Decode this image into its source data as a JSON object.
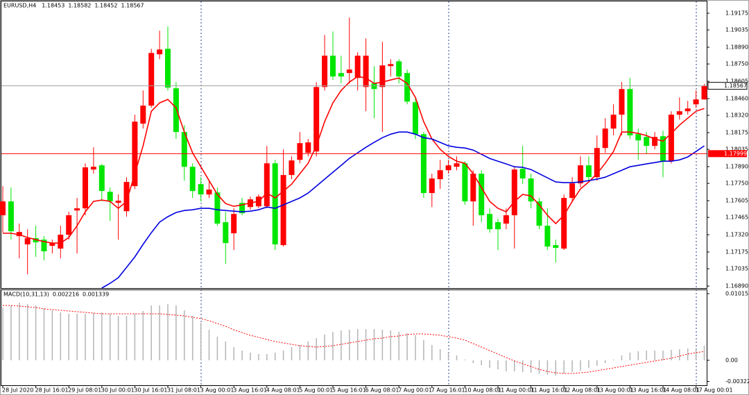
{
  "chart_data": [
    {
      "type": "candlestick",
      "title": "EURUSD,H4",
      "categories": [
        "28 Jul 2020",
        null,
        null,
        null,
        "28 Jul 16:01",
        null,
        null,
        null,
        "29 Jul 08:01",
        null,
        null,
        null,
        "30 Jul 00:01",
        null,
        null,
        null,
        "30 Jul 16:01",
        null,
        null,
        null,
        "31 Jul 08:01",
        null,
        null,
        null,
        "3 Aug 00:01",
        null,
        null,
        null,
        "3 Aug 16:01",
        null,
        null,
        null,
        "4 Aug 08:01",
        null,
        null,
        null,
        "5 Aug 00:01",
        null,
        null,
        null,
        "5 Aug 16:01",
        null,
        null,
        null,
        "6 Aug 08:01",
        null,
        null,
        null,
        "7 Aug 00:01",
        null,
        null,
        null,
        "7 Aug 16:01",
        null,
        null,
        null,
        "10 Aug 08:01",
        null,
        null,
        null,
        "11 Aug 00:01",
        null,
        null,
        null,
        "11 Aug 16:01",
        null,
        null,
        null,
        "12 Aug 08:01",
        null,
        null,
        null,
        "13 Aug 00:01",
        null,
        null,
        null,
        "13 Aug 16:01",
        null,
        null,
        null,
        "14 Aug 08:01",
        null,
        null,
        null,
        "17 Aug 00:01",
        null
      ],
      "open": [
        1.17483,
        1.17599,
        1.17308,
        1.17239,
        1.17291,
        1.17279,
        1.17227,
        1.17204,
        1.1732,
        1.17523,
        1.17541,
        1.17866,
        1.17901,
        1.1768,
        1.17587,
        1.17517,
        1.17727,
        1.1825,
        1.18401,
        1.18831,
        1.18877,
        1.18546,
        1.1818,
        1.17889,
        1.17744,
        1.17657,
        1.17674,
        1.17425,
        1.17332,
        1.17587,
        1.17552,
        1.17558,
        1.17558,
        1.17918,
        1.17233,
        1.1782,
        1.17947,
        1.18006,
        1.18017,
        1.18557,
        1.18819,
        1.18674,
        1.18674,
        1.18633,
        1.18557,
        1.18587,
        1.18557,
        1.18732,
        1.18772,
        1.18674,
        1.1843,
        1.18162,
        1.17669,
        1.17785,
        1.1786,
        1.17889,
        1.17918,
        1.17599,
        1.17831,
        1.17494,
        1.17425,
        1.17413,
        1.17483,
        1.17872,
        1.17791,
        1.17599,
        1.17395,
        1.17233,
        1.17204,
        1.17628,
        1.1775,
        1.17901,
        1.17802,
        1.18046,
        1.18209,
        1.18325,
        1.1854,
        1.18162,
        1.18139,
        1.18064,
        1.18145,
        1.17936,
        1.18325,
        1.18354,
        1.18412,
        1.18453
      ],
      "high": [
        1.17727,
        1.17715,
        1.17413,
        1.17366,
        1.17395,
        1.17308,
        1.17279,
        1.17395,
        1.17512,
        1.17628,
        1.17918,
        1.18052,
        1.17913,
        1.17715,
        1.17657,
        1.17802,
        1.18325,
        1.18528,
        1.18877,
        1.19028,
        1.19063,
        1.18598,
        1.18238,
        1.17918,
        1.17802,
        1.17773,
        1.17715,
        1.17512,
        1.17541,
        1.17628,
        1.17639,
        1.17657,
        1.18064,
        1.17947,
        1.18035,
        1.17976,
        1.1818,
        1.18122,
        1.18598,
        1.18993,
        1.19022,
        1.18819,
        1.19138,
        1.18848,
        1.18964,
        1.18732,
        1.18935,
        1.1879,
        1.1879,
        1.18703,
        1.1847,
        1.1818,
        1.17831,
        1.17947,
        1.17947,
        1.17976,
        1.17936,
        1.1786,
        1.1786,
        1.17541,
        1.17454,
        1.17541,
        1.17889,
        1.18064,
        1.17831,
        1.17628,
        1.17541,
        1.17279,
        1.17657,
        1.17802,
        1.17976,
        1.17976,
        1.18152,
        1.18296,
        1.18412,
        1.18598,
        1.18633,
        1.18209,
        1.1818,
        1.1818,
        1.18191,
        1.18354,
        1.1847,
        1.18441,
        1.18528,
        1.18582
      ],
      "low": [
        1.17337,
        1.17279,
        1.17122,
        1.16989,
        1.17134,
        1.17105,
        1.17163,
        1.17122,
        1.17279,
        1.17163,
        1.17483,
        1.17831,
        1.17599,
        1.17436,
        1.17279,
        1.17471,
        1.17703,
        1.18209,
        1.18383,
        1.1879,
        1.18528,
        1.18122,
        1.17773,
        1.17628,
        1.17599,
        1.17628,
        1.17395,
        1.17076,
        1.17192,
        1.17483,
        1.17529,
        1.17541,
        1.17541,
        1.17192,
        1.17221,
        1.17785,
        1.17918,
        1.17976,
        1.17976,
        1.18528,
        1.18616,
        1.18587,
        1.18587,
        1.18528,
        1.18354,
        1.18296,
        1.1818,
        1.18645,
        1.18587,
        1.18412,
        1.18122,
        1.17628,
        1.17552,
        1.17703,
        1.17831,
        1.1786,
        1.1757,
        1.17395,
        1.17425,
        1.17337,
        1.17192,
        1.17366,
        1.17204,
        1.17744,
        1.17541,
        1.17366,
        1.17192,
        1.17088,
        1.17192,
        1.17599,
        1.17715,
        1.17762,
        1.17773,
        1.18006,
        1.18152,
        1.18152,
        1.18122,
        1.17947,
        1.17994,
        1.18035,
        1.17802,
        1.17918,
        1.18284,
        1.18325,
        1.18383,
        1.18452
      ],
      "close": [
        1.17599,
        1.17349,
        1.17343,
        1.17291,
        1.17256,
        1.17181,
        1.1725,
        1.1732,
        1.17483,
        1.17541,
        1.17884,
        1.17889,
        1.17686,
        1.17599,
        1.17605,
        1.17762,
        1.18267,
        1.18401,
        1.18842,
        1.18871,
        1.18552,
        1.1818,
        1.17889,
        1.17686,
        1.17657,
        1.17698,
        1.17413,
        1.1725,
        1.17494,
        1.175,
        1.17616,
        1.17639,
        1.17918,
        1.17239,
        1.1782,
        1.17942,
        1.18087,
        1.18093,
        1.18557,
        1.18819,
        1.18645,
        1.18645,
        1.18703,
        1.18819,
        1.18819,
        1.1854,
        1.18738,
        1.18749,
        1.18645,
        1.18435,
        1.18162,
        1.17669,
        1.17791,
        1.1786,
        1.17901,
        1.17918,
        1.17599,
        1.17831,
        1.17483,
        1.17366,
        1.17366,
        1.17483,
        1.17866,
        1.17791,
        1.17599,
        1.17395,
        1.17221,
        1.1721,
        1.17628,
        1.1775,
        1.17901,
        1.17802,
        1.18046,
        1.18209,
        1.18325,
        1.1854,
        1.18152,
        1.1811,
        1.18064,
        1.18139,
        1.17936,
        1.18325,
        1.18354,
        1.18377,
        1.18453,
        1.18567
      ],
      "up_color": "#ff0000",
      "down_color": "#00e600",
      "series": [
        {
          "color": "#ff0000",
          "values": [
            1.17332,
            1.17332,
            1.1732,
            1.17297,
            1.17279,
            1.17262,
            1.1725,
            1.1725,
            1.17297,
            1.17395,
            1.17512,
            1.17599,
            1.1761,
            1.17599,
            1.17541,
            1.17599,
            1.17831,
            1.18064,
            1.18354,
            1.18424,
            1.18453,
            1.18383,
            1.1818,
            1.18006,
            1.17889,
            1.17773,
            1.17657,
            1.17581,
            1.17558,
            1.1757,
            1.17587,
            1.17599,
            1.17669,
            1.17628,
            1.17686,
            1.17744,
            1.17831,
            1.17918,
            1.18064,
            1.18267,
            1.18424,
            1.18528,
            1.18598,
            1.18645,
            1.18633,
            1.18587,
            1.18598,
            1.18616,
            1.18633,
            1.18587,
            1.1847,
            1.18267,
            1.18122,
            1.18035,
            1.17976,
            1.17936,
            1.17918,
            1.17831,
            1.17715,
            1.17599,
            1.17541,
            1.17512,
            1.17599,
            1.17657,
            1.17645,
            1.1757,
            1.17483,
            1.17413,
            1.17483,
            1.17599,
            1.17703,
            1.17762,
            1.17831,
            1.17918,
            1.18017,
            1.1818,
            1.1818,
            1.18168,
            1.18151,
            1.18122,
            1.18104,
            1.18168,
            1.18238,
            1.18296,
            1.18354,
            1.18377
          ]
        },
        {
          "color": "#0000e0",
          "values": [
            null,
            null,
            null,
            null,
            null,
            null,
            null,
            null,
            null,
            null,
            null,
            null,
            1.16873,
            1.16913,
            1.1696,
            1.17047,
            1.17134,
            1.17239,
            1.17337,
            1.17425,
            1.17471,
            1.17506,
            1.17523,
            1.17529,
            1.17541,
            1.17541,
            1.17529,
            1.17523,
            1.17517,
            1.17512,
            1.17517,
            1.17529,
            1.17552,
            1.17541,
            1.1757,
            1.17599,
            1.17628,
            1.17669,
            1.17727,
            1.17785,
            1.17843,
            1.17901,
            1.17959,
            1.18006,
            1.18052,
            1.18093,
            1.18133,
            1.18162,
            1.1818,
            1.1818,
            1.18162,
            1.18133,
            1.18122,
            1.18093,
            1.18064,
            1.18052,
            1.18046,
            1.18029,
            1.17994,
            1.17959,
            1.17936,
            1.17913,
            1.17889,
            1.17884,
            1.17866,
            1.17831,
            1.17796,
            1.17762,
            1.17756,
            1.17756,
            1.17762,
            1.17773,
            1.17785,
            1.17802,
            1.17831,
            1.1786,
            1.17889,
            1.17901,
            1.17913,
            1.17924,
            1.17936,
            1.17936,
            1.17947,
            1.17971,
            1.18017,
            1.18064
          ]
        }
      ],
      "levels": [
        {
          "value": 1.17999,
          "color": "#ff0000"
        }
      ],
      "price_line_color": "#a0a0a0",
      "ylim": [
        1.16873,
        1.19274
      ],
      "yticks": [
        1.19175,
        1.19035,
        {
          "value": 1.1889,
          "label": "1.18890"
        },
        {
          "value": 1.1875,
          "label": "1.18750"
        },
        1.18605,
        {
          "value": 1.1846,
          "label": "1.18460"
        },
        {
          "value": 1.1832,
          "label": "1.18320"
        },
        1.18175,
        1.18035,
        {
          "value": 1.1789,
          "label": "1.17890"
        },
        {
          "value": 1.1775,
          "label": "1.17750"
        },
        1.17605,
        1.17465,
        {
          "value": 1.1732,
          "label": "1.17320"
        },
        1.17175,
        1.17035,
        {
          "value": 1.1689,
          "label": "1.16890"
        }
      ]
    },
    {
      "type": "macd",
      "title": "MACD(10,31,13)",
      "histogram": {
        "color": "#b4b4b4",
        "values": [
          0.008041,
          0.008358,
          0.008781,
          0.00857,
          0.008358,
          0.007935,
          0.007618,
          0.0073,
          0.007089,
          0.007089,
          0.007089,
          0.007194,
          0.0073,
          0.007089,
          0.006771,
          0.006771,
          0.007089,
          0.007512,
          0.008358,
          0.008358,
          0.00857,
          0.008358,
          0.007618,
          0.006771,
          0.005713,
          0.004655,
          0.003597,
          0.002857,
          0.00201,
          0.001481,
          0.001164,
          0.000952,
          0.000952,
          0.001164,
          0.001481,
          0.00201,
          0.002328,
          0.002857,
          0.003386,
          0.003915,
          0.004338,
          0.004549,
          0.004655,
          0.004761,
          0.004761,
          0.004761,
          0.004655,
          0.004549,
          0.004338,
          0.004126,
          0.003809,
          0.003068,
          0.002328,
          0.001693,
          0.001164,
          0.000741,
          0.000106,
          -0.000423,
          -0.000741,
          -0.001164,
          -0.001375,
          -0.001693,
          -0.001693,
          -0.001799,
          -0.001904,
          -0.00201,
          -0.002222,
          -0.002328,
          -0.00201,
          -0.001799,
          -0.001587,
          -0.001164,
          -0.000846,
          -0.000423,
          0.000106,
          0.000741,
          0.001164,
          0.001375,
          0.001481,
          0.001481,
          0.001481,
          0.001587,
          0.001693,
          0.001799,
          0.001693,
          0.002216
        ]
      },
      "signal": {
        "color": "#ff0000",
        "values": [
          0.008358,
          0.008358,
          0.008252,
          0.008147,
          0.008041,
          0.007829,
          0.007723,
          0.007618,
          0.007512,
          0.007406,
          0.0073,
          0.007194,
          0.007089,
          0.007089,
          0.007089,
          0.007089,
          0.007089,
          0.007089,
          0.007089,
          0.007089,
          0.006983,
          0.006877,
          0.006771,
          0.00656,
          0.006348,
          0.006031,
          0.005607,
          0.005184,
          0.004655,
          0.004232,
          0.003809,
          0.003491,
          0.003174,
          0.002857,
          0.002645,
          0.002433,
          0.002222,
          0.002116,
          0.00201,
          0.002116,
          0.002222,
          0.002433,
          0.002645,
          0.002857,
          0.003068,
          0.00328,
          0.003386,
          0.003597,
          0.003703,
          0.003915,
          0.00402,
          0.00402,
          0.003915,
          0.003809,
          0.003597,
          0.003386,
          0.003068,
          0.002539,
          0.00201,
          0.001481,
          0.000952,
          0.000423,
          -0.000106,
          -0.000529,
          -0.000952,
          -0.001375,
          -0.001693,
          -0.001904,
          -0.00201,
          -0.00201,
          -0.001904,
          -0.001799,
          -0.001587,
          -0.001375,
          -0.001164,
          -0.000952,
          -0.000741,
          -0.000529,
          -0.000317,
          -0.000106,
          0.000106,
          0.000317,
          0.000635,
          0.000952,
          0.001164,
          0.001339
        ]
      },
      "ylim": [
        -0.003809,
        0.010686
      ],
      "yticks": [
        0.010155,
        {
          "value": 0,
          "label": "0.00"
        },
        -0.003225
      ]
    }
  ]
}
